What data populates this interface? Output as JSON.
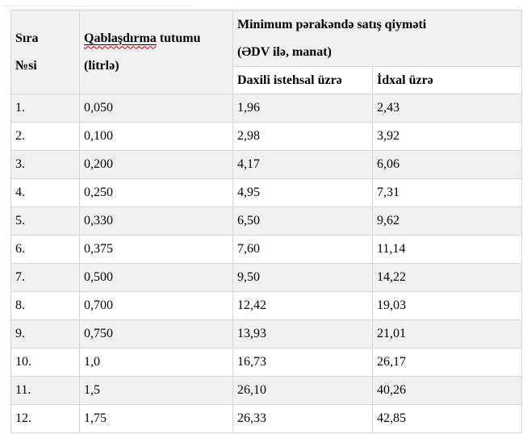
{
  "colors": {
    "row_alt_bg": "#f1f1f1",
    "border": "#d6d6d6",
    "spellcheck_underline": "#c00000",
    "page_bg": "#ffffff",
    "text": "#000000"
  },
  "table": {
    "header": {
      "col_no": {
        "line1": "Sıra",
        "line2": "№si"
      },
      "col_capacity": {
        "flagged_word": "Qablaşdırma",
        "rest_of_line1": "tutumu",
        "line2": "(litrlə)"
      },
      "col_min_price": {
        "line1": "Minimum pərakəndə satış qiyməti",
        "line2": "(ƏDV ilə, manat)"
      },
      "sub_domestic": "Daxili istehsal üzrə",
      "sub_import": "İdxal üzrə"
    },
    "rows": [
      {
        "no": "1.",
        "capacity": "0,050",
        "domestic": "1,96",
        "import": "2,43"
      },
      {
        "no": "2.",
        "capacity": "0,100",
        "domestic": "2,98",
        "import": "3,92"
      },
      {
        "no": "3.",
        "capacity": "0,200",
        "domestic": "4,17",
        "import": "6,06"
      },
      {
        "no": "4.",
        "capacity": "0,250",
        "domestic": "4,95",
        "import": "7,31"
      },
      {
        "no": "5.",
        "capacity": "0,330",
        "domestic": "6,50",
        "import": "9,62"
      },
      {
        "no": "6.",
        "capacity": "0,375",
        "domestic": "7,60",
        "import": "11,14"
      },
      {
        "no": "7.",
        "capacity": "0,500",
        "domestic": "9,50",
        "import": "14,22"
      },
      {
        "no": "8.",
        "capacity": "0,700",
        "domestic": "12,42",
        "import": "19,03"
      },
      {
        "no": "9.",
        "capacity": "0,750",
        "domestic": "13,93",
        "import": "21,01"
      },
      {
        "no": "10.",
        "capacity": "1,0",
        "domestic": "16,73",
        "import": "26,17"
      },
      {
        "no": "11.",
        "capacity": "1,5",
        "domestic": "26,10",
        "import": "40,26"
      },
      {
        "no": "12.",
        "capacity": "1,75",
        "domestic": "26,33",
        "import": "42,85"
      }
    ]
  }
}
